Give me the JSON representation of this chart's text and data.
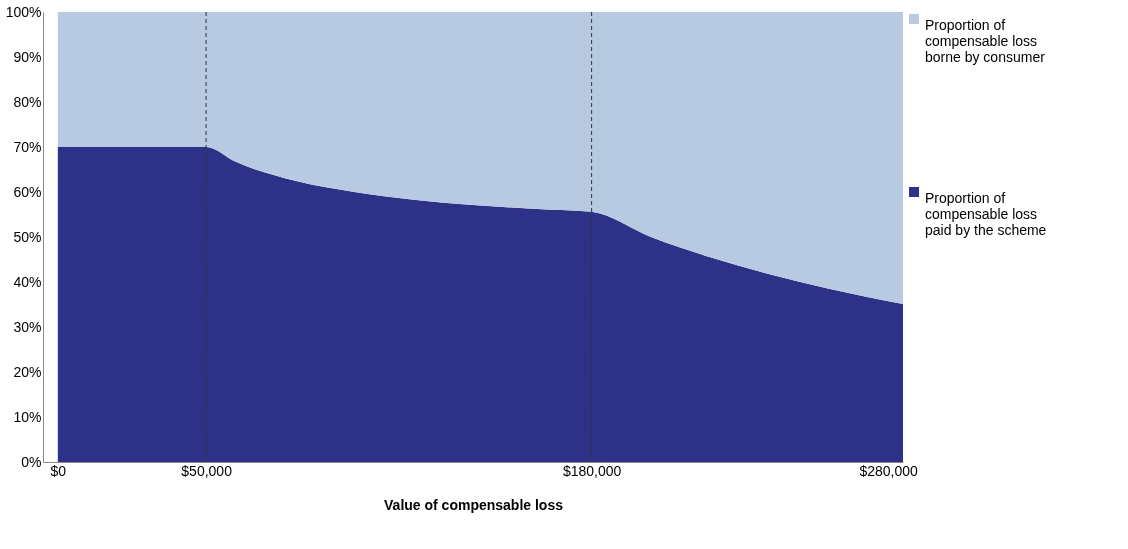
{
  "chart_data": {
    "type": "area",
    "stacked": true,
    "xlabel": "Value of compensable loss",
    "x": [
      0,
      50000,
      60000,
      80000,
      100000,
      120000,
      140000,
      160000,
      180000,
      200000,
      220000,
      240000,
      260000,
      285000
    ],
    "series": [
      {
        "name": "Proportion of compensable loss paid by the scheme",
        "color": "#2e3188",
        "values": [
          70,
          70,
          66.7,
          62.5,
          60,
          58.3,
          57.1,
          56.3,
          55.6,
          50,
          45.5,
          41.7,
          38.5,
          35.1
        ]
      },
      {
        "name": "Proportion of compensable loss borne by consumer",
        "color": "#b8cae1",
        "values": [
          30,
          30,
          33.3,
          37.5,
          40,
          41.7,
          42.9,
          43.7,
          44.4,
          50,
          54.5,
          58.3,
          61.5,
          64.9
        ]
      }
    ],
    "xlim": [
      -5000,
      285000
    ],
    "xticks": [
      {
        "value": 0,
        "label": "$0"
      },
      {
        "value": 50000,
        "label": "$50,000"
      },
      {
        "value": 180000,
        "label": "$180,000"
      },
      {
        "value": 280000,
        "label": "$280,000"
      }
    ],
    "ylim": [
      0,
      100
    ],
    "yticks": [
      {
        "value": 0,
        "label": "0%"
      },
      {
        "value": 10,
        "label": "10%"
      },
      {
        "value": 20,
        "label": "20%"
      },
      {
        "value": 30,
        "label": "30%"
      },
      {
        "value": 40,
        "label": "40%"
      },
      {
        "value": 50,
        "label": "50%"
      },
      {
        "value": 60,
        "label": "60%"
      },
      {
        "value": 70,
        "label": "70%"
      },
      {
        "value": 80,
        "label": "80%"
      },
      {
        "value": 90,
        "label": "90%"
      },
      {
        "value": 100,
        "label": "100%"
      }
    ],
    "ref_lines": [
      {
        "axis": "x",
        "value": 50000,
        "color": "#333333",
        "line_style": "dashed"
      },
      {
        "axis": "x",
        "value": 180000,
        "color": "#333333",
        "line_style": "dashed"
      }
    ],
    "legend": "right",
    "grid": false
  }
}
